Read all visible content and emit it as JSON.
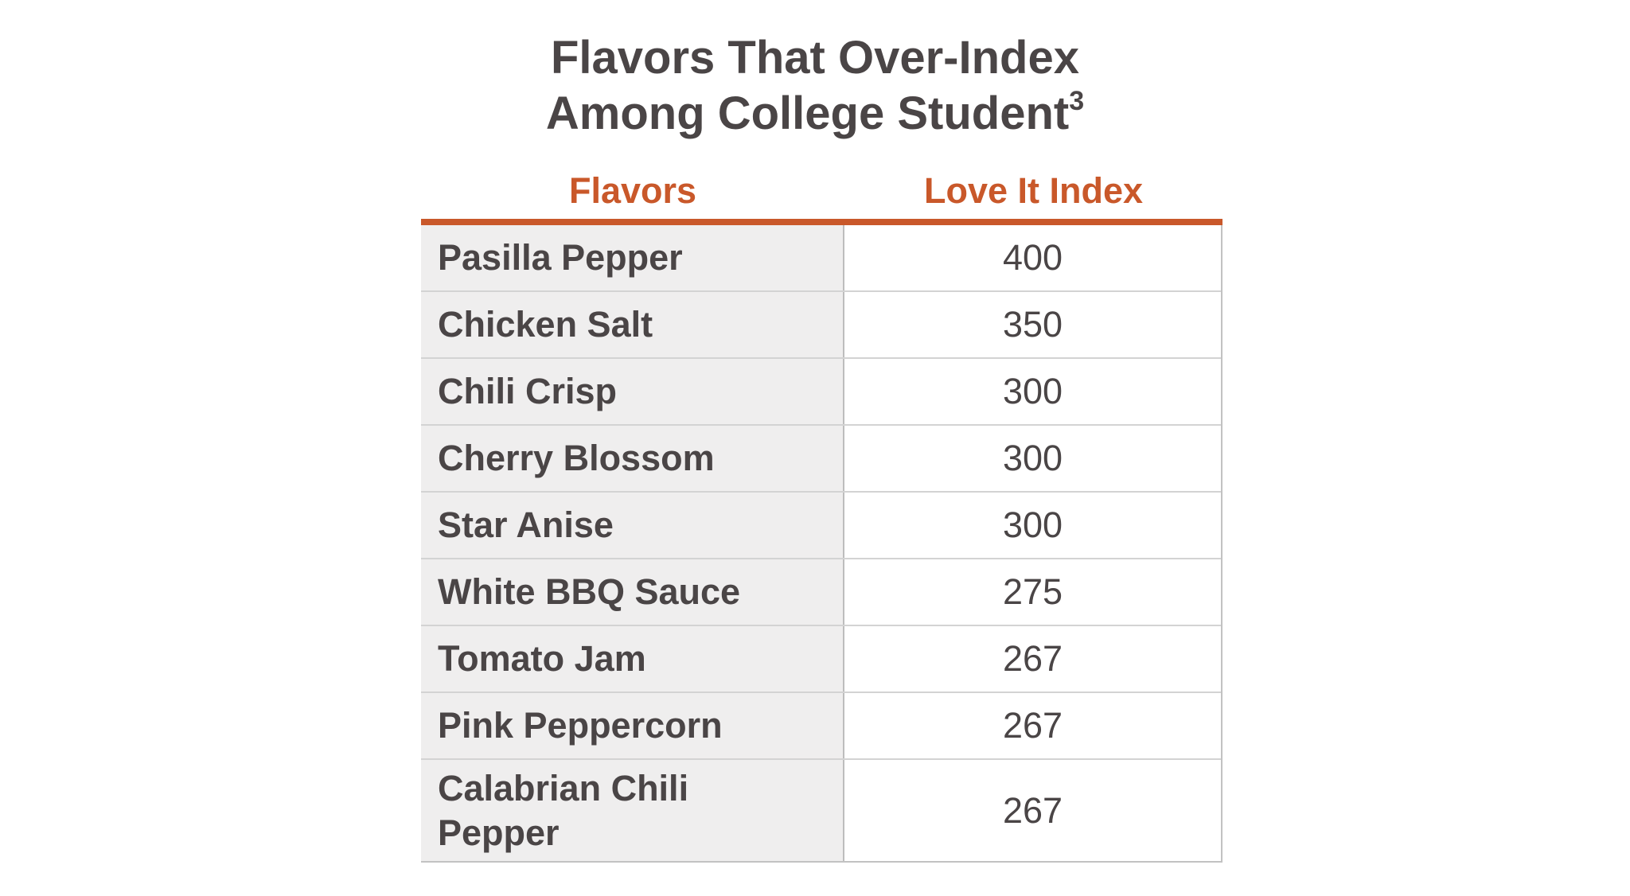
{
  "chart_data": {
    "type": "table",
    "title": {
      "line1": "Flavors That Over-Index",
      "line2": "Among College Student",
      "superscript": "3"
    },
    "columns": [
      "Flavors",
      "Love It Index"
    ],
    "rows": [
      {
        "flavor": "Pasilla Pepper",
        "index": 400
      },
      {
        "flavor": "Chicken Salt",
        "index": 350
      },
      {
        "flavor": "Chili Crisp",
        "index": 300
      },
      {
        "flavor": "Cherry Blossom",
        "index": 300
      },
      {
        "flavor": "Star Anise",
        "index": 300
      },
      {
        "flavor": "White BBQ Sauce",
        "index": 275
      },
      {
        "flavor": "Tomato Jam",
        "index": 267
      },
      {
        "flavor": "Pink Peppercorn",
        "index": 267
      },
      {
        "flavor": "Calabrian Chili Pepper",
        "index": 267
      }
    ],
    "colors": {
      "accent": "#c9582a",
      "text": "#4a4546",
      "flavor_cell_bg": "#efeeee"
    }
  }
}
